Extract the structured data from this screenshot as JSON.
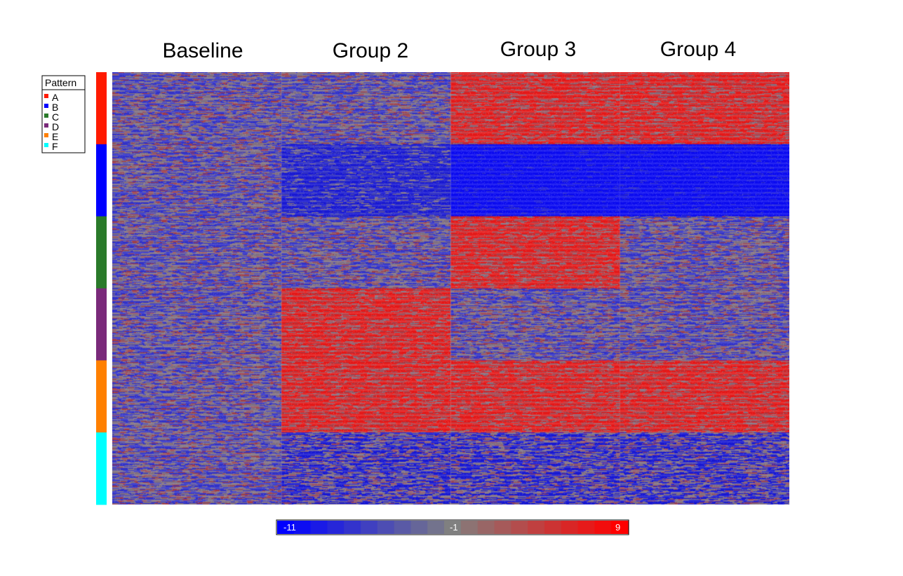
{
  "chart_data": {
    "type": "heatmap",
    "columns": [
      "Baseline",
      "Group 2",
      "Group 3",
      "Group 4"
    ],
    "row_groups": [
      {
        "pattern": "A",
        "color": "#ff1a00",
        "levels": [
          "mixed",
          "mixed",
          "high",
          "high"
        ]
      },
      {
        "pattern": "B",
        "color": "#0000ff",
        "levels": [
          "mixed",
          "low",
          "very-low",
          "very-low"
        ]
      },
      {
        "pattern": "C",
        "color": "#2a7a2a",
        "levels": [
          "mixed",
          "mixed",
          "high",
          "mixed"
        ]
      },
      {
        "pattern": "D",
        "color": "#7a2a7a",
        "levels": [
          "mixed",
          "high",
          "mixed",
          "mixed"
        ]
      },
      {
        "pattern": "E",
        "color": "#ff8000",
        "levels": [
          "mixed",
          "high",
          "high",
          "high"
        ]
      },
      {
        "pattern": "F",
        "color": "#00ffff",
        "levels": [
          "mixed",
          "low-mixed",
          "low-mixed",
          "low-mixed"
        ]
      }
    ],
    "legend": {
      "title": "Pattern",
      "placement": "left"
    },
    "color_scale": {
      "min": -11,
      "mid": -1,
      "max": 9,
      "min_label": "-11",
      "mid_label": "-1",
      "max_label": "9",
      "low_color": "#0000ff",
      "mid_color": "#808080",
      "high_color": "#ff0000"
    }
  }
}
